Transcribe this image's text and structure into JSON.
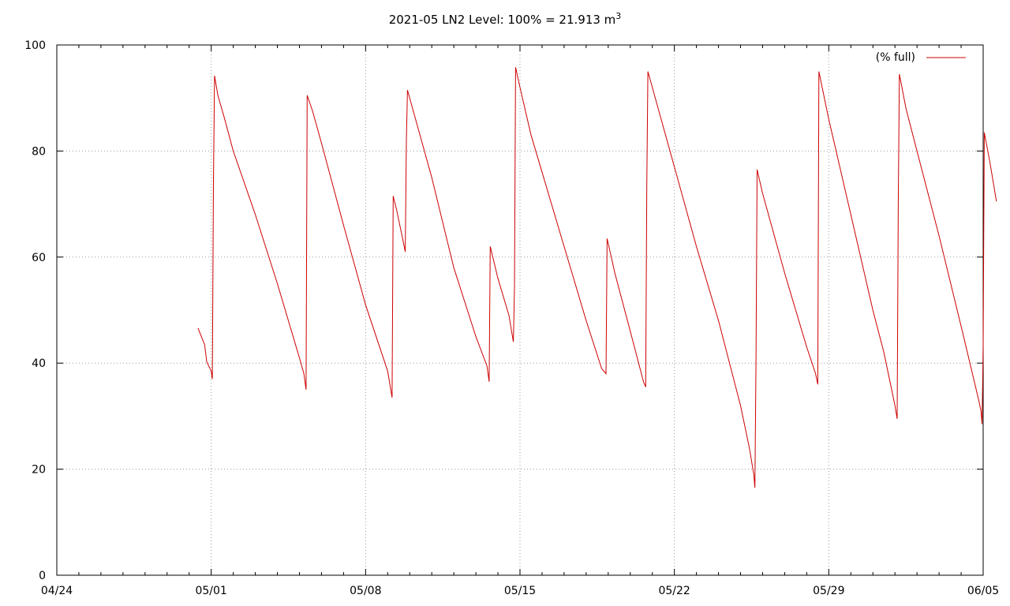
{
  "chart_data": {
    "type": "line",
    "title": "2021-05 LN2 Level: 100% = 21.913 m",
    "title_superscript": "3",
    "xlabel": "",
    "ylabel": "",
    "x_ticks": [
      "04/24",
      "05/01",
      "05/08",
      "05/15",
      "05/22",
      "05/29",
      "06/05"
    ],
    "x_range_days": [
      0,
      42
    ],
    "ylim": [
      0,
      100
    ],
    "y_ticks": [
      0,
      20,
      40,
      60,
      80,
      100
    ],
    "grid": true,
    "legend_placement": "top-right",
    "series": [
      {
        "name": "(% full)",
        "color": "#cc0000",
        "points": [
          [
            6.4,
            46.6
          ],
          [
            6.7,
            43.5
          ],
          [
            6.8,
            40.2
          ],
          [
            7.0,
            38.5
          ],
          [
            7.05,
            37.0
          ],
          [
            7.1,
            74.0
          ],
          [
            7.15,
            94.2
          ],
          [
            7.3,
            90.5
          ],
          [
            7.6,
            86.2
          ],
          [
            8.0,
            80.0
          ],
          [
            9.0,
            68.0
          ],
          [
            10.0,
            55.0
          ],
          [
            11.0,
            41.0
          ],
          [
            11.2,
            38.0
          ],
          [
            11.3,
            35.0
          ],
          [
            11.35,
            90.5
          ],
          [
            11.6,
            87.5
          ],
          [
            12.0,
            81.5
          ],
          [
            13.0,
            66.0
          ],
          [
            14.0,
            51.0
          ],
          [
            15.0,
            38.5
          ],
          [
            15.2,
            33.5
          ],
          [
            15.25,
            71.5
          ],
          [
            15.4,
            69.0
          ],
          [
            15.7,
            63.0
          ],
          [
            15.8,
            61.0
          ],
          [
            15.85,
            82.0
          ],
          [
            15.9,
            91.5
          ],
          [
            16.2,
            87.0
          ],
          [
            17.0,
            75.0
          ],
          [
            18.0,
            58.0
          ],
          [
            19.0,
            45.0
          ],
          [
            19.5,
            39.5
          ],
          [
            19.6,
            36.5
          ],
          [
            19.65,
            62.0
          ],
          [
            20.0,
            56.0
          ],
          [
            20.5,
            49.0
          ],
          [
            20.7,
            44.0
          ],
          [
            20.75,
            54.0
          ],
          [
            20.8,
            95.8
          ],
          [
            21.0,
            92.0
          ],
          [
            21.5,
            83.0
          ],
          [
            22.0,
            76.0
          ],
          [
            23.0,
            62.0
          ],
          [
            24.0,
            48.0
          ],
          [
            24.7,
            39.0
          ],
          [
            24.9,
            38.0
          ],
          [
            24.95,
            63.5
          ],
          [
            25.3,
            57.0
          ],
          [
            26.0,
            46.0
          ],
          [
            26.6,
            36.5
          ],
          [
            26.7,
            35.5
          ],
          [
            26.75,
            73.5
          ],
          [
            26.8,
            95.0
          ],
          [
            27.0,
            92.0
          ],
          [
            28.0,
            77.0
          ],
          [
            29.0,
            62.0
          ],
          [
            30.0,
            48.0
          ],
          [
            31.0,
            32.0
          ],
          [
            31.4,
            24.0
          ],
          [
            31.6,
            19.0
          ],
          [
            31.65,
            16.5
          ],
          [
            31.7,
            40.5
          ],
          [
            31.75,
            76.5
          ],
          [
            32.0,
            72.0
          ],
          [
            33.0,
            57.0
          ],
          [
            34.0,
            43.0
          ],
          [
            34.4,
            38.0
          ],
          [
            34.5,
            36.0
          ],
          [
            34.55,
            95.0
          ],
          [
            35.0,
            86.0
          ],
          [
            36.0,
            68.0
          ],
          [
            37.0,
            50.0
          ],
          [
            37.5,
            42.0
          ],
          [
            37.8,
            36.0
          ],
          [
            38.0,
            32.0
          ],
          [
            38.1,
            29.5
          ],
          [
            38.15,
            70.0
          ],
          [
            38.2,
            94.5
          ],
          [
            38.5,
            88.0
          ],
          [
            39.0,
            80.0
          ],
          [
            40.0,
            64.0
          ],
          [
            41.0,
            47.0
          ],
          [
            41.8,
            33.0
          ],
          [
            41.9,
            31.0
          ],
          [
            41.95,
            28.5
          ],
          [
            42.0,
            43.5
          ],
          [
            42.05,
            83.5
          ],
          [
            42.3,
            78.0
          ],
          [
            42.6,
            70.5
          ]
        ]
      }
    ]
  }
}
